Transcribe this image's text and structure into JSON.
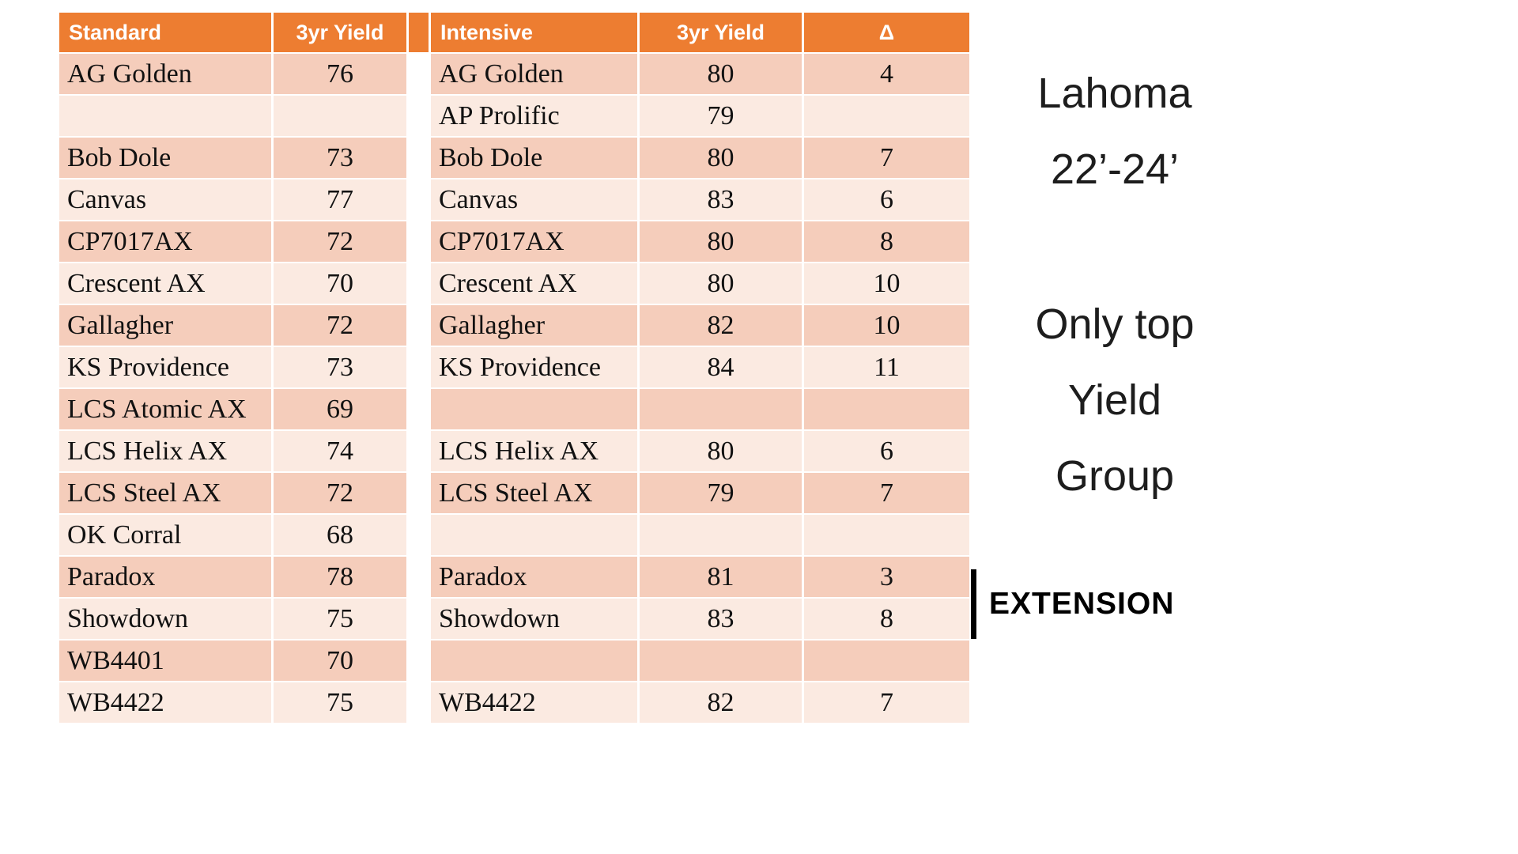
{
  "colors": {
    "header_bg": "#ED7D31",
    "row_dark": "#F5CDBB",
    "row_light": "#FBEAE1"
  },
  "table": {
    "headers": [
      "Standard",
      "3yr Yield",
      "",
      "Intensive",
      "3yr Yield",
      "Δ"
    ],
    "rows": [
      [
        "AG Golden",
        "76",
        "",
        "AG Golden",
        "80",
        "4"
      ],
      [
        "",
        "",
        "",
        "AP Prolific",
        "79",
        ""
      ],
      [
        "Bob Dole",
        "73",
        "",
        "Bob Dole",
        "80",
        "7"
      ],
      [
        "Canvas",
        "77",
        "",
        "Canvas",
        "83",
        "6"
      ],
      [
        "CP7017AX",
        "72",
        "",
        "CP7017AX",
        "80",
        "8"
      ],
      [
        "Crescent AX",
        "70",
        "",
        "Crescent AX",
        "80",
        "10"
      ],
      [
        "Gallagher",
        "72",
        "",
        "Gallagher",
        "82",
        "10"
      ],
      [
        "KS Providence",
        "73",
        "",
        "KS Providence",
        "84",
        "11"
      ],
      [
        "LCS Atomic AX",
        "69",
        "",
        "",
        "",
        ""
      ],
      [
        "LCS Helix AX",
        "74",
        "",
        "LCS Helix AX",
        "80",
        "6"
      ],
      [
        "LCS Steel AX",
        "72",
        "",
        "LCS Steel AX",
        "79",
        "7"
      ],
      [
        "OK Corral",
        "68",
        "",
        "",
        "",
        ""
      ],
      [
        "Paradox",
        "78",
        "",
        "Paradox",
        "81",
        "3"
      ],
      [
        "Showdown",
        "75",
        "",
        "Showdown",
        "83",
        "8"
      ],
      [
        "WB4401",
        "70",
        "",
        "",
        "",
        ""
      ],
      [
        "WB4422",
        "75",
        "",
        "WB4422",
        "82",
        "7"
      ]
    ]
  },
  "side": {
    "title_lines": [
      "Lahoma",
      "22’-24’"
    ],
    "subtitle_lines": [
      "Only top",
      "Yield",
      "Group"
    ],
    "brand": "EXTENSION"
  }
}
